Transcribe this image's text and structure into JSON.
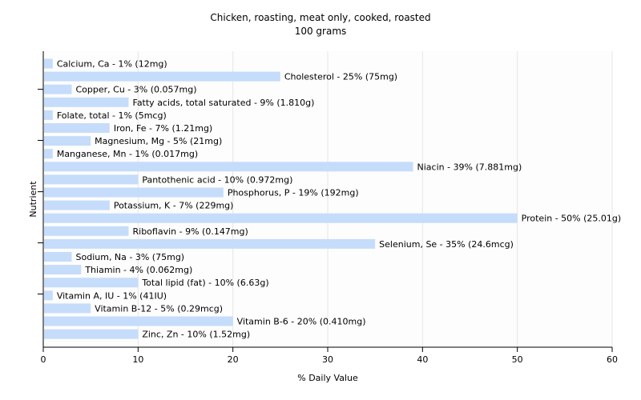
{
  "chart_data": {
    "type": "bar",
    "orientation": "horizontal",
    "title": "Chicken, roasting, meat only, cooked, roasted",
    "subtitle": "100 grams",
    "xlabel": "% Daily Value",
    "ylabel": "Nutrient",
    "xlim": [
      0,
      60
    ],
    "xticks": [
      0,
      10,
      20,
      30,
      40,
      50,
      60
    ],
    "grid": true,
    "bar_color": "#c6dcfb",
    "categories": [
      "Calcium, Ca",
      "Cholesterol",
      "Copper, Cu",
      "Fatty acids, total saturated",
      "Folate, total",
      "Iron, Fe",
      "Magnesium, Mg",
      "Manganese, Mn",
      "Niacin",
      "Pantothenic acid",
      "Phosphorus, P",
      "Potassium, K",
      "Protein",
      "Riboflavin",
      "Selenium, Se",
      "Sodium, Na",
      "Thiamin",
      "Total lipid (fat)",
      "Vitamin A, IU",
      "Vitamin B-12",
      "Vitamin B-6",
      "Zinc, Zn"
    ],
    "values": [
      1,
      25,
      3,
      9,
      1,
      7,
      5,
      1,
      39,
      10,
      19,
      7,
      50,
      9,
      35,
      3,
      4,
      10,
      1,
      5,
      20,
      10
    ],
    "labels": [
      "Calcium, Ca - 1% (12mg)",
      "Cholesterol - 25% (75mg)",
      "Copper, Cu - 3% (0.057mg)",
      "Fatty acids, total saturated - 9% (1.810g)",
      "Folate, total - 1% (5mcg)",
      "Iron, Fe - 7% (1.21mg)",
      "Magnesium, Mg - 5% (21mg)",
      "Manganese, Mn - 1% (0.017mg)",
      "Niacin - 39% (7.881mg)",
      "Pantothenic acid - 10% (0.972mg)",
      "Phosphorus, P - 19% (192mg)",
      "Potassium, K - 7% (229mg)",
      "Protein - 50% (25.01g)",
      "Riboflavin - 9% (0.147mg)",
      "Selenium, Se - 35% (24.6mcg)",
      "Sodium, Na - 3% (75mg)",
      "Thiamin - 4% (0.062mg)",
      "Total lipid (fat) - 10% (6.63g)",
      "Vitamin A, IU - 1% (41IU)",
      "Vitamin B-12 - 5% (0.29mcg)",
      "Vitamin B-6 - 20% (0.410mg)",
      "Zinc, Zn - 10% (1.52mg)"
    ]
  }
}
